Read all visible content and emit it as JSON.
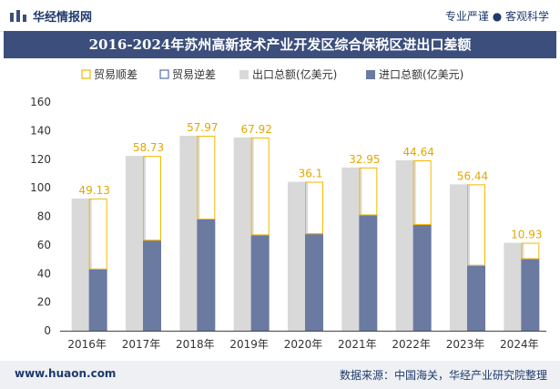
{
  "header": {
    "brand": "华经情报网",
    "slogan": "专业严谨 ● 客观科学"
  },
  "footer": {
    "url": "www.huaon.com",
    "source": "数据来源：中国海关，华经产业研究院整理"
  },
  "colors": {
    "export": "#d9d9d9",
    "import": "#6b7aa1",
    "surplus": "#f5b800",
    "deficit": "#5b6fa8",
    "titlebar": "#3b4e7c"
  },
  "chart_data": {
    "type": "bar",
    "title": "2016-2024年苏州高新技术产业开发区综合保税区进出口差额",
    "categories": [
      "2016年",
      "2017年",
      "2018年",
      "2019年",
      "2020年",
      "2021年",
      "2022年",
      "2023年",
      "2024年"
    ],
    "series": [
      {
        "name": "出口总额(亿美元)",
        "values": [
          92.5,
          122.3,
          136.4,
          135.2,
          104.2,
          114.2,
          119.2,
          102.4,
          61.5
        ]
      },
      {
        "name": "进口总额(亿美元)",
        "values": [
          43.4,
          63.6,
          78.4,
          67.3,
          68.1,
          81.3,
          74.6,
          46.0,
          50.6
        ]
      }
    ],
    "balance": {
      "surplus_label": "贸易顺差",
      "deficit_label": "贸易逆差",
      "values": [
        49.13,
        58.73,
        57.97,
        67.92,
        36.1,
        32.95,
        44.64,
        56.44,
        10.93
      ],
      "labels": [
        "49.13",
        "58.73",
        "57.97",
        "67.92",
        "36.1",
        "32.95",
        "44.64",
        "56.44",
        "10.93"
      ]
    },
    "ylim": [
      0,
      160
    ],
    "yticks": [
      "0",
      "20",
      "40",
      "60",
      "80",
      "100",
      "120",
      "140",
      "160"
    ],
    "xlabel": "",
    "ylabel": "",
    "legend_position": "top"
  }
}
